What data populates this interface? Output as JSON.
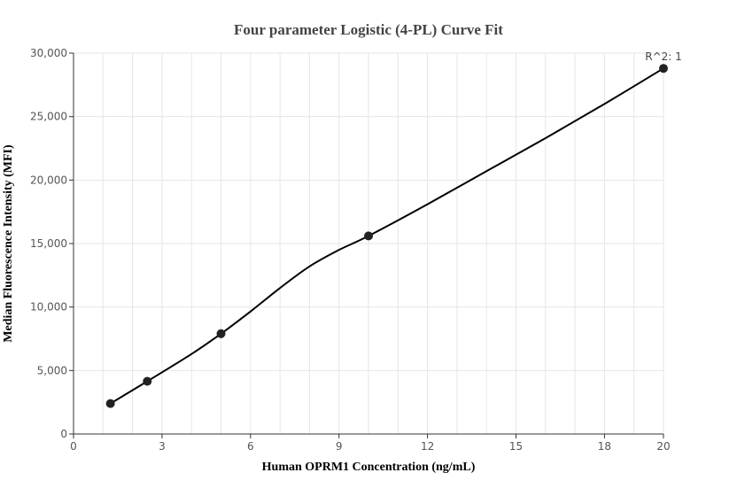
{
  "chart_data": {
    "type": "line",
    "title": "Four parameter Logistic (4-PL) Curve Fit",
    "xlabel": "Human OPRM1 Concentration (ng/mL)",
    "ylabel": "Median Fluorescence Intensity (MFI)",
    "xlim": [
      0,
      20
    ],
    "ylim": [
      0,
      30000
    ],
    "x_ticks": [
      0,
      3,
      6,
      9,
      12,
      15,
      18,
      20
    ],
    "x_tick_labels": [
      "0",
      "3",
      "6",
      "9",
      "12",
      "15",
      "18",
      "20"
    ],
    "y_ticks": [
      0,
      5000,
      10000,
      15000,
      20000,
      25000,
      30000
    ],
    "y_tick_labels": [
      "0",
      "5,000",
      "10,000",
      "15,000",
      "20,000",
      "25,000",
      "30,000"
    ],
    "grid": true,
    "series": [
      {
        "x": [
          1.25,
          2.5,
          5,
          10,
          20
        ],
        "y": [
          2400,
          4150,
          7900,
          15600,
          28800
        ]
      }
    ],
    "fit_curve": {
      "x": [
        1.25,
        2.5,
        4,
        5,
        6,
        7,
        8,
        9,
        10,
        12,
        14,
        16,
        18,
        20
      ],
      "y": [
        2400,
        4150,
        6300,
        7900,
        9650,
        11500,
        13200,
        14500,
        15600,
        18100,
        20700,
        23300,
        26000,
        28800
      ]
    },
    "annotation": "R^2: 1",
    "colors": {
      "line": "#000000",
      "point": "#222222",
      "grid": "#e6e6e6",
      "axis": "#333333"
    }
  }
}
